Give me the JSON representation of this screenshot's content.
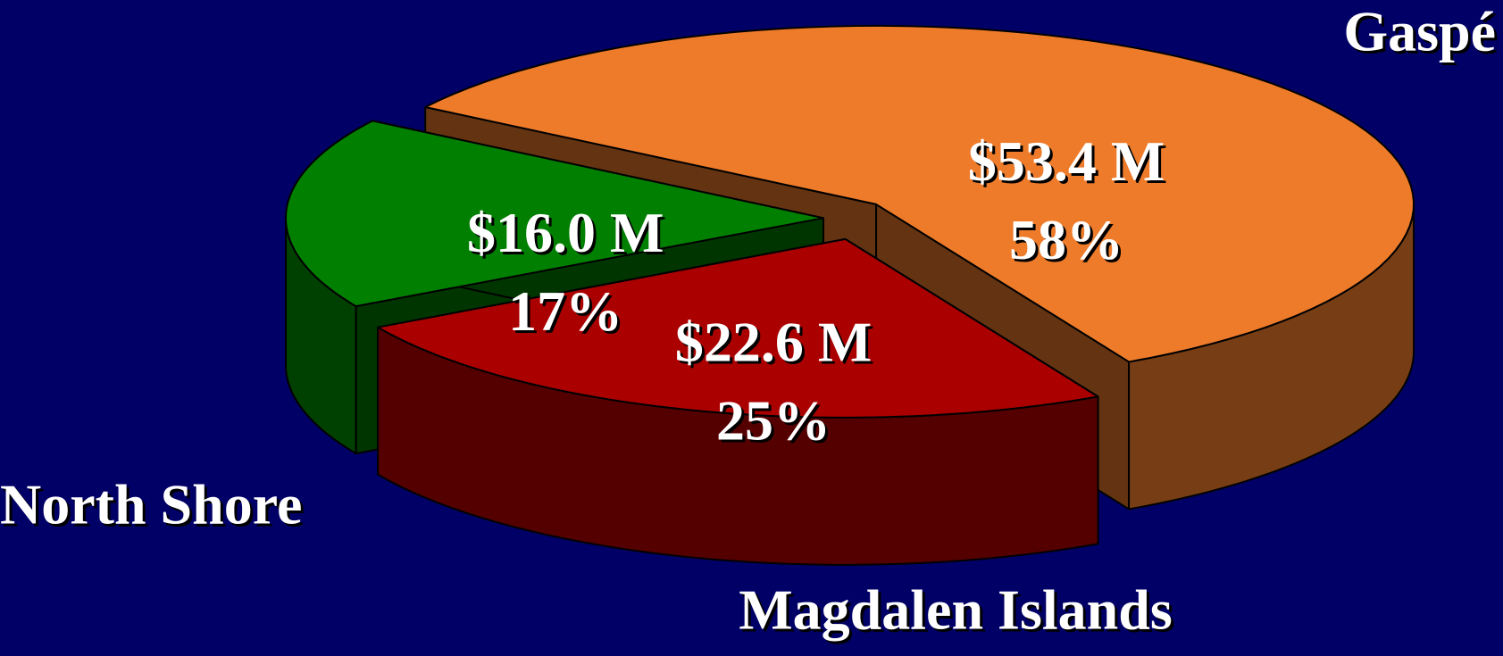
{
  "chart_data": {
    "type": "pie3d",
    "categories": [
      "Gaspé",
      "North Shore",
      "Magdalen Islands"
    ],
    "values": [
      53.4,
      22.6,
      16.0
    ],
    "value_labels": [
      "$53.4 M",
      "$22.6 M",
      "$16.0 M"
    ],
    "shares": [
      58,
      25,
      17
    ],
    "share_labels": [
      "58%",
      "25%",
      "17%"
    ],
    "colors": [
      "#ed7b2a",
      "#aa0000",
      "#007f00"
    ]
  }
}
